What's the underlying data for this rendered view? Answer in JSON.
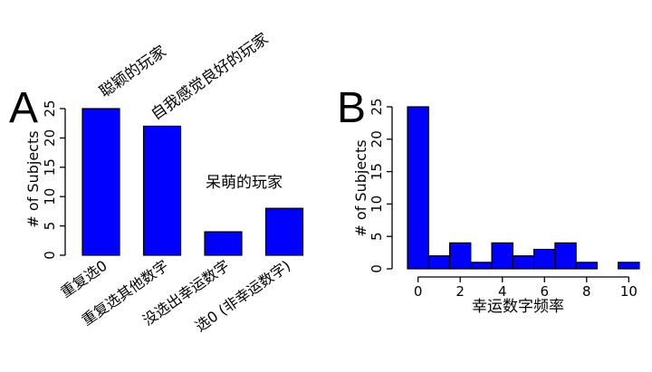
{
  "chart_data": [
    {
      "panel": "A",
      "type": "bar",
      "categories": [
        "重复选0",
        "重复选其他数字",
        "没选出幸运数字",
        "选0 (非幸运数字)"
      ],
      "values": [
        25,
        22,
        4,
        8
      ],
      "ylabel": "# of Subjects",
      "xlabel": "",
      "ylim": [
        0,
        25
      ],
      "yticks": [
        0,
        5,
        10,
        15,
        20,
        25
      ],
      "bar_color": "#0000ff",
      "annotations": [
        "聪颖的玩家",
        "自我感觉良好的玩家",
        "呆萌的玩家"
      ]
    },
    {
      "panel": "B",
      "type": "bar",
      "subtype": "histogram",
      "bin_starts": [
        -0.5,
        0.5,
        1.5,
        2.5,
        3.5,
        4.5,
        5.5,
        6.5,
        7.5,
        8.5,
        9.5
      ],
      "bin_width": 1,
      "values": [
        25,
        2,
        4,
        1,
        4,
        2,
        3,
        4,
        1,
        0,
        1
      ],
      "xlabel": "幸运数字频率",
      "ylabel": "# of Subjects",
      "xticks": [
        0,
        2,
        4,
        6,
        8,
        10
      ],
      "yticks": [
        0,
        5,
        10,
        15,
        20,
        25
      ],
      "xlim": [
        -0.5,
        10.5
      ],
      "ylim": [
        0,
        25
      ],
      "bar_color": "#0000ff"
    }
  ]
}
